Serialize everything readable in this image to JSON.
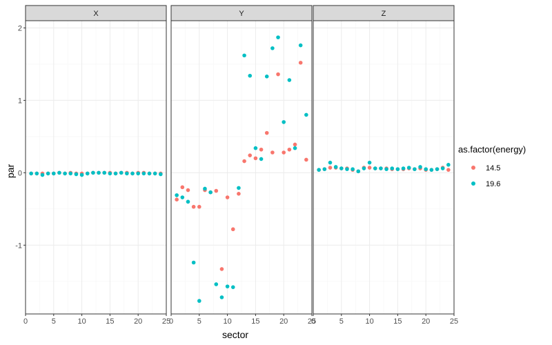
{
  "chart_data": {
    "type": "scatter",
    "xlabel": "sector",
    "ylabel": "par",
    "xlim": [
      0,
      25
    ],
    "ylim": [
      -1.95,
      2.1
    ],
    "x_ticks": [
      "0",
      "5",
      "10",
      "15",
      "20",
      "25"
    ],
    "y_ticks": [
      "-1",
      "0",
      "1",
      "2"
    ],
    "x_tick_values": [
      0,
      5,
      10,
      15,
      20,
      25
    ],
    "y_tick_values": [
      -1,
      0,
      1,
      2
    ],
    "grid": true,
    "legend": {
      "title": "as.factor(energy)",
      "placement": "right",
      "entries": [
        {
          "label": "14.5",
          "color": "#F8766D"
        },
        {
          "label": "19.6",
          "color": "#00BFC4"
        }
      ]
    },
    "panels": [
      {
        "name": "X",
        "series": [
          {
            "name": "14.5",
            "color": "#F8766D",
            "x": [
              1,
              2,
              3,
              4,
              5,
              6,
              7,
              8,
              9,
              10,
              11,
              12,
              13,
              14,
              15,
              16,
              17,
              18,
              19,
              20,
              21,
              22,
              23,
              24
            ],
            "y": [
              -0.01,
              -0.01,
              -0.01,
              -0.01,
              -0.01,
              0.0,
              -0.01,
              0.0,
              -0.01,
              -0.01,
              -0.01,
              0.0,
              0.0,
              0.0,
              0.0,
              -0.01,
              0.0,
              0.0,
              -0.01,
              0.0,
              0.0,
              -0.01,
              -0.01,
              -0.01
            ]
          },
          {
            "name": "19.6",
            "color": "#00BFC4",
            "x": [
              1,
              2,
              3,
              4,
              5,
              6,
              7,
              8,
              9,
              10,
              11,
              12,
              13,
              14,
              15,
              16,
              17,
              18,
              19,
              20,
              21,
              22,
              23,
              24
            ],
            "y": [
              -0.01,
              -0.01,
              -0.03,
              -0.01,
              -0.01,
              0.0,
              -0.01,
              -0.01,
              -0.02,
              -0.03,
              -0.01,
              0.0,
              0.0,
              0.0,
              -0.01,
              -0.01,
              0.0,
              -0.01,
              -0.01,
              -0.01,
              -0.01,
              -0.01,
              -0.01,
              -0.02
            ]
          }
        ]
      },
      {
        "name": "Y",
        "series": [
          {
            "name": "14.5",
            "color": "#F8766D",
            "x": [
              1,
              2,
              3,
              4,
              5,
              6,
              7,
              8,
              9,
              10,
              11,
              12,
              13,
              14,
              15,
              16,
              17,
              18,
              19,
              20,
              21,
              22,
              23,
              24
            ],
            "y": [
              -0.37,
              -0.2,
              -0.24,
              -0.47,
              -0.47,
              -0.24,
              -0.27,
              -0.25,
              -1.33,
              -0.34,
              -0.78,
              -0.29,
              0.16,
              0.24,
              0.2,
              0.32,
              0.55,
              0.28,
              1.36,
              0.28,
              0.32,
              0.39,
              1.52,
              0.18
            ]
          },
          {
            "name": "19.6",
            "color": "#00BFC4",
            "x": [
              1,
              2,
              3,
              4,
              5,
              6,
              7,
              8,
              9,
              10,
              11,
              12,
              13,
              14,
              15,
              16,
              17,
              18,
              19,
              20,
              21,
              22,
              23,
              24
            ],
            "y": [
              -0.31,
              -0.34,
              -0.4,
              -1.24,
              -1.77,
              -0.22,
              -0.27,
              -1.54,
              -1.72,
              -1.57,
              -1.58,
              -0.21,
              1.62,
              1.34,
              0.34,
              0.19,
              1.33,
              1.72,
              1.87,
              0.7,
              1.28,
              0.34,
              1.76,
              0.8
            ]
          }
        ]
      },
      {
        "name": "Z",
        "series": [
          {
            "name": "14.5",
            "color": "#F8766D",
            "x": [
              1,
              2,
              3,
              4,
              5,
              6,
              7,
              8,
              9,
              10,
              11,
              12,
              13,
              14,
              15,
              16,
              17,
              18,
              19,
              20,
              21,
              22,
              23,
              24
            ],
            "y": [
              0.04,
              0.05,
              0.07,
              0.07,
              0.06,
              0.06,
              0.04,
              0.02,
              0.07,
              0.07,
              0.06,
              0.06,
              0.06,
              0.05,
              0.05,
              0.05,
              0.06,
              0.05,
              0.06,
              0.04,
              0.04,
              0.05,
              0.07,
              0.04
            ]
          },
          {
            "name": "19.6",
            "color": "#00BFC4",
            "x": [
              1,
              2,
              3,
              4,
              5,
              6,
              7,
              8,
              9,
              10,
              11,
              12,
              13,
              14,
              15,
              16,
              17,
              18,
              19,
              20,
              21,
              22,
              23,
              24
            ],
            "y": [
              0.04,
              0.05,
              0.14,
              0.08,
              0.06,
              0.05,
              0.05,
              0.02,
              0.06,
              0.14,
              0.06,
              0.06,
              0.05,
              0.06,
              0.05,
              0.06,
              0.07,
              0.05,
              0.08,
              0.05,
              0.04,
              0.05,
              0.06,
              0.11
            ]
          }
        ]
      }
    ]
  }
}
